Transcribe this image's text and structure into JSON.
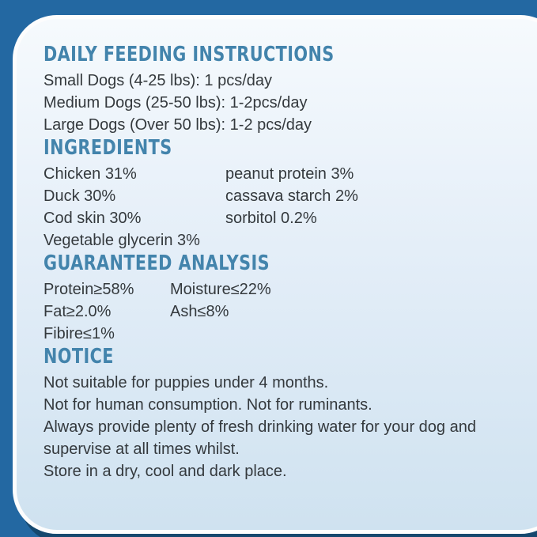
{
  "theme": {
    "outer_background": "#2368a2",
    "shadow_color": "#15486e",
    "card_border_color": "#fdfdfd",
    "card_background_top": "#f6fafd",
    "card_background_bottom": "#cfe2f0",
    "heading_color": "#4384ac",
    "body_text_color": "#34393d"
  },
  "sections": {
    "feeding": {
      "heading": "DAILY FEEDING INSTRUCTIONS",
      "lines": [
        "Small Dogs (4-25 lbs): 1 pcs/day",
        "Medium Dogs (25-50 lbs): 1-2pcs/day",
        "Large Dogs (Over 50 lbs): 1-2 pcs/day"
      ]
    },
    "ingredients": {
      "heading": "INGREDIENTS",
      "left_column": [
        "Chicken 31%",
        "Duck 30%",
        "Cod skin 30%",
        "Vegetable glycerin 3%"
      ],
      "right_column": [
        "peanut protein 3%",
        "cassava starch 2%",
        "sorbitol 0.2%"
      ]
    },
    "analysis": {
      "heading": "GUARANTEED ANALYSIS",
      "left_column": [
        "Protein≥58%",
        "Fat≥2.0%",
        "Fibire≤1%"
      ],
      "right_column": [
        "Moisture≤22%",
        "Ash≤8%"
      ]
    },
    "notice": {
      "heading": "NOTICE",
      "lines": [
        "Not suitable for puppies under 4 months.",
        "Not for human consumption. Not for ruminants.",
        "Always provide plenty of fresh drinking water for your dog and",
        "supervise at all times whilst.",
        "Store in a dry, cool and dark place."
      ]
    }
  }
}
